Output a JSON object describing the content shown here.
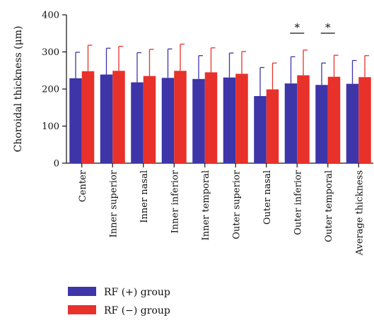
{
  "chart_data": {
    "type": "bar",
    "title": "",
    "xlabel": "",
    "ylabel": "Choroidal thickness (μm)",
    "ylim": [
      0,
      400
    ],
    "yticks": [
      0,
      100,
      200,
      300,
      400
    ],
    "grid": false,
    "legend_position": "bottom-left",
    "categories": [
      "Center",
      "Inner superior",
      "Inner nasal",
      "Inner inferior",
      "Inner temporal",
      "Outer superior",
      "Outer nasal",
      "Outer inferior",
      "Outer temporal",
      "Average thickness"
    ],
    "series": [
      {
        "name": "RF (+) group",
        "color": "#3d35a8",
        "values": [
          229,
          239,
          218,
          230,
          227,
          231,
          181,
          215,
          211,
          214
        ],
        "error": [
          70,
          71,
          80,
          78,
          63,
          66,
          77,
          72,
          59,
          63
        ]
      },
      {
        "name": "RF (−) group",
        "color": "#e8312a",
        "values": [
          248,
          249,
          235,
          249,
          245,
          241,
          199,
          237,
          233,
          232
        ],
        "error": [
          70,
          66,
          72,
          72,
          66,
          60,
          71,
          68,
          58,
          58
        ]
      }
    ],
    "annotations": [
      {
        "category_index": 7,
        "label": "*"
      },
      {
        "category_index": 8,
        "label": "*"
      }
    ]
  }
}
